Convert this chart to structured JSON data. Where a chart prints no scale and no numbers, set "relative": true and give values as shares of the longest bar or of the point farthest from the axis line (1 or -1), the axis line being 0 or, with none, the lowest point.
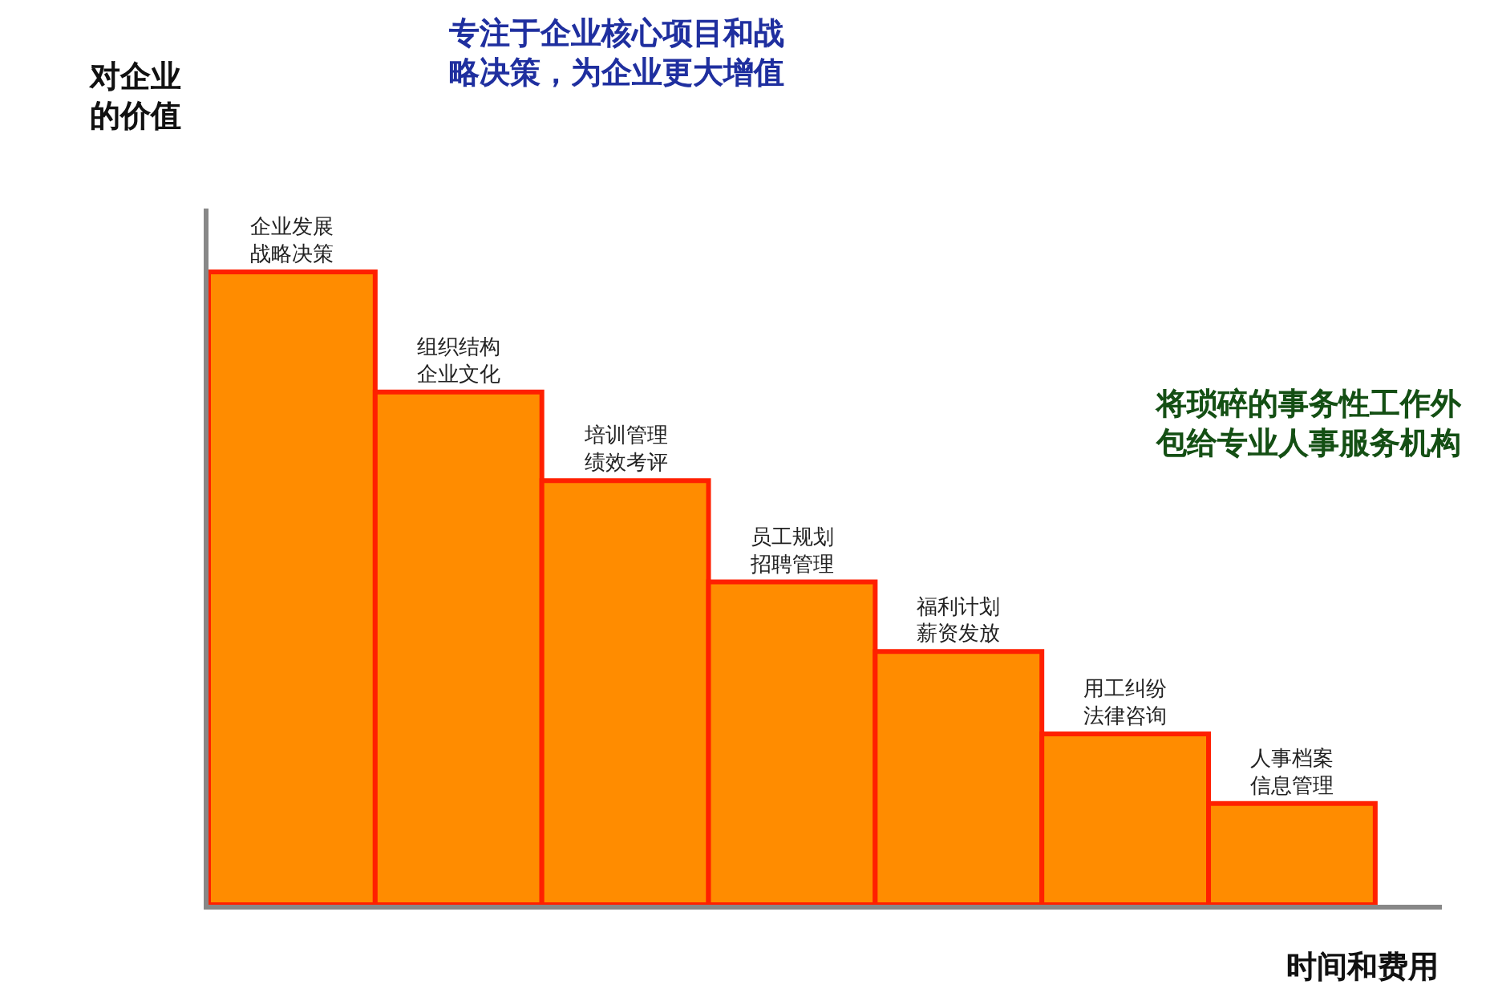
{
  "chart_data": {
    "type": "bar",
    "relative": true,
    "categories": [
      "企业发展战略决策",
      "组织结构企业文化",
      "培训管理绩效考评",
      "员工规划招聘管理",
      "福利计划薪资发放",
      "用工纠纷法律咨询",
      "人事档案信息管理"
    ],
    "values": [
      1,
      0.81,
      0.67,
      0.51,
      0.4,
      0.27,
      0.16
    ],
    "color": "#ff8c00",
    "xlabel": "时间和费用",
    "ylabel": "对企业的价值",
    "annotations": [
      "专注于企业核心项目和战略决策，为企业更大增值",
      "将琐碎的事务性工作外包给专业人事服务机构"
    ],
    "legend": false
  }
}
